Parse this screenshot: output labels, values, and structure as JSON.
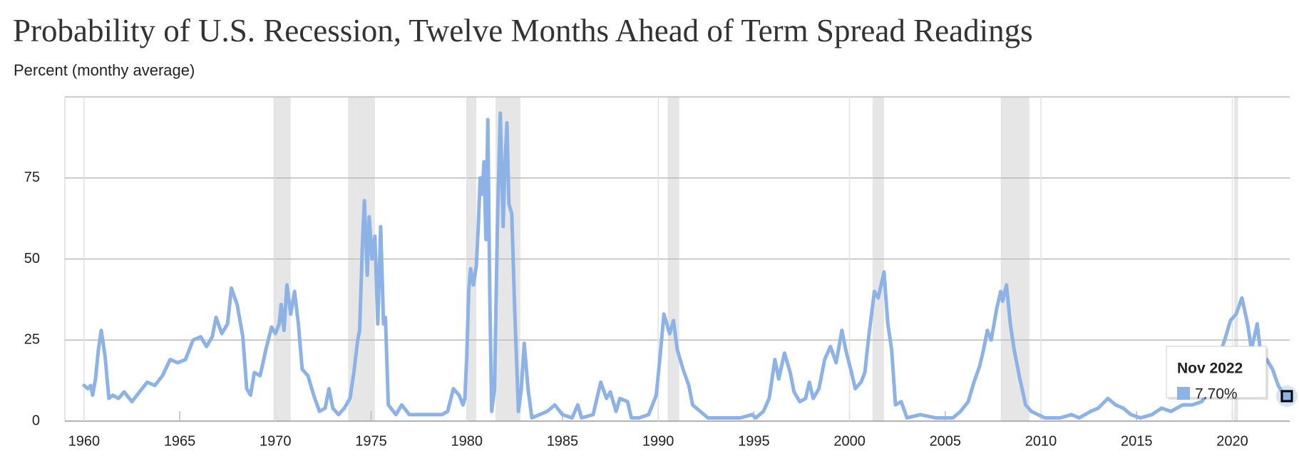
{
  "chart_data": {
    "type": "line",
    "title": "Probability of U.S. Recession, Twelve Months Ahead of Term Spread Readings",
    "subtitle": "Percent (monthy average)",
    "color": "#8db3e6",
    "xlim": [
      1959,
      2023
    ],
    "ylim": [
      0,
      100
    ],
    "xticks": [
      1960,
      1965,
      1970,
      1975,
      1980,
      1985,
      1990,
      1995,
      2000,
      2005,
      2010,
      2015,
      2020
    ],
    "yticks": [
      0,
      25,
      50,
      75
    ],
    "grid": true,
    "recessions": [
      [
        1969.9,
        1970.8
      ],
      [
        1973.8,
        1975.2
      ],
      [
        1980.0,
        1980.5
      ],
      [
        1981.5,
        1982.8
      ],
      [
        1990.5,
        1991.1
      ],
      [
        2001.2,
        2001.8
      ],
      [
        2007.9,
        2009.4
      ],
      [
        2020.1,
        2020.3
      ]
    ],
    "x": [
      1960.0,
      1960.2,
      1960.35,
      1960.45,
      1960.6,
      1960.75,
      1960.9,
      1961.1,
      1961.3,
      1961.5,
      1961.8,
      1962.1,
      1962.5,
      1962.9,
      1963.3,
      1963.7,
      1964.1,
      1964.5,
      1964.9,
      1965.3,
      1965.7,
      1966.1,
      1966.4,
      1966.7,
      1966.9,
      1967.2,
      1967.5,
      1967.7,
      1968.0,
      1968.3,
      1968.5,
      1968.7,
      1968.9,
      1969.2,
      1969.5,
      1969.8,
      1970.0,
      1970.2,
      1970.3,
      1970.45,
      1970.6,
      1970.8,
      1971.0,
      1971.2,
      1971.4,
      1971.7,
      1972.0,
      1972.3,
      1972.6,
      1972.8,
      1973.0,
      1973.3,
      1973.6,
      1973.9,
      1974.1,
      1974.3,
      1974.4,
      1974.55,
      1974.65,
      1974.8,
      1974.9,
      1975.05,
      1975.2,
      1975.35,
      1975.5,
      1975.65,
      1975.75,
      1975.9,
      1976.3,
      1976.6,
      1977.0,
      1977.6,
      1978.2,
      1978.7,
      1979.0,
      1979.3,
      1979.6,
      1979.8,
      1979.9,
      1980.0,
      1980.1,
      1980.2,
      1980.35,
      1980.5,
      1980.6,
      1980.7,
      1980.8,
      1980.9,
      1981.0,
      1981.1,
      1981.2,
      1981.3,
      1981.45,
      1981.6,
      1981.75,
      1981.9,
      1982.0,
      1982.1,
      1982.2,
      1982.35,
      1982.5,
      1982.7,
      1982.85,
      1983.0,
      1983.2,
      1983.4,
      1983.8,
      1984.2,
      1984.6,
      1985.0,
      1985.5,
      1985.8,
      1986.0,
      1986.6,
      1987.0,
      1987.3,
      1987.5,
      1987.8,
      1988.0,
      1988.4,
      1988.6,
      1989.0,
      1989.5,
      1989.9,
      1990.1,
      1990.3,
      1990.6,
      1990.8,
      1991.0,
      1991.3,
      1991.6,
      1991.8,
      1992.2,
      1992.6,
      1993.3,
      1994.3,
      1994.9,
      1995.1,
      1995.5,
      1995.8,
      1996.1,
      1996.3,
      1996.6,
      1996.9,
      1997.1,
      1997.4,
      1997.7,
      1997.9,
      1998.1,
      1998.4,
      1998.7,
      1999.0,
      1999.3,
      1999.6,
      1999.8,
      2000.1,
      2000.3,
      2000.6,
      2000.8,
      2001.0,
      2001.3,
      2001.5,
      2001.8,
      2002.0,
      2002.2,
      2002.4,
      2002.7,
      2003.0,
      2003.7,
      2004.5,
      2005.4,
      2005.8,
      2006.2,
      2006.5,
      2006.8,
      2007.0,
      2007.2,
      2007.4,
      2007.7,
      2007.9,
      2008.0,
      2008.2,
      2008.4,
      2008.6,
      2008.9,
      2009.2,
      2009.5,
      2010.2,
      2011.0,
      2011.6,
      2012.0,
      2012.6,
      2013.0,
      2013.5,
      2013.9,
      2014.3,
      2014.7,
      2015.2,
      2015.8,
      2016.3,
      2016.8,
      2017.4,
      2017.9,
      2018.4,
      2018.9,
      2019.3,
      2019.6,
      2019.9,
      2020.2,
      2020.5,
      2020.8,
      2021.0,
      2021.3,
      2021.5,
      2021.8,
      2022.1,
      2022.4,
      2022.6,
      2022.85
    ],
    "values": [
      11,
      10,
      11,
      8,
      13,
      22,
      28,
      20,
      7,
      8,
      7,
      9,
      6,
      9,
      12,
      11,
      14,
      19,
      18,
      19,
      25,
      26,
      23,
      26,
      32,
      27,
      30,
      41,
      36,
      26,
      10,
      8,
      15,
      14,
      22,
      29,
      27,
      30,
      36,
      28,
      42,
      33,
      40,
      30,
      16,
      14,
      8,
      3,
      4,
      10,
      4,
      2,
      4,
      7,
      15,
      25,
      28,
      55,
      68,
      45,
      63,
      50,
      57,
      30,
      60,
      30,
      32,
      5,
      2,
      5,
      2,
      2,
      2,
      2,
      3,
      10,
      8,
      5,
      7,
      20,
      40,
      47,
      42,
      48,
      60,
      75,
      70,
      80,
      56,
      93,
      40,
      3,
      10,
      60,
      95,
      60,
      80,
      92,
      67,
      64,
      35,
      3,
      10,
      24,
      10,
      1,
      2,
      3,
      5,
      2,
      1,
      5,
      1,
      2,
      12,
      7,
      9,
      3,
      7,
      6,
      1,
      1,
      2,
      8,
      20,
      33,
      27,
      31,
      22,
      16,
      11,
      5,
      3,
      1,
      1,
      1,
      2,
      1,
      3,
      7,
      19,
      13,
      21,
      15,
      9,
      6,
      7,
      12,
      7,
      10,
      19,
      23,
      18,
      28,
      22,
      15,
      10,
      12,
      15,
      26,
      40,
      38,
      46,
      30,
      22,
      5,
      6,
      1,
      2,
      1,
      1,
      3,
      6,
      12,
      17,
      22,
      28,
      25,
      35,
      40,
      37,
      42,
      30,
      22,
      13,
      5,
      3,
      1,
      1,
      2,
      1,
      3,
      4,
      7,
      5,
      4,
      2,
      1,
      2,
      4,
      3,
      5,
      5,
      6,
      10,
      20,
      25,
      31,
      33,
      38,
      30,
      22,
      30,
      20,
      19,
      16,
      11,
      9,
      7.7
    ],
    "tooltip": {
      "title": "Nov 2022",
      "label": "7.70%"
    }
  }
}
